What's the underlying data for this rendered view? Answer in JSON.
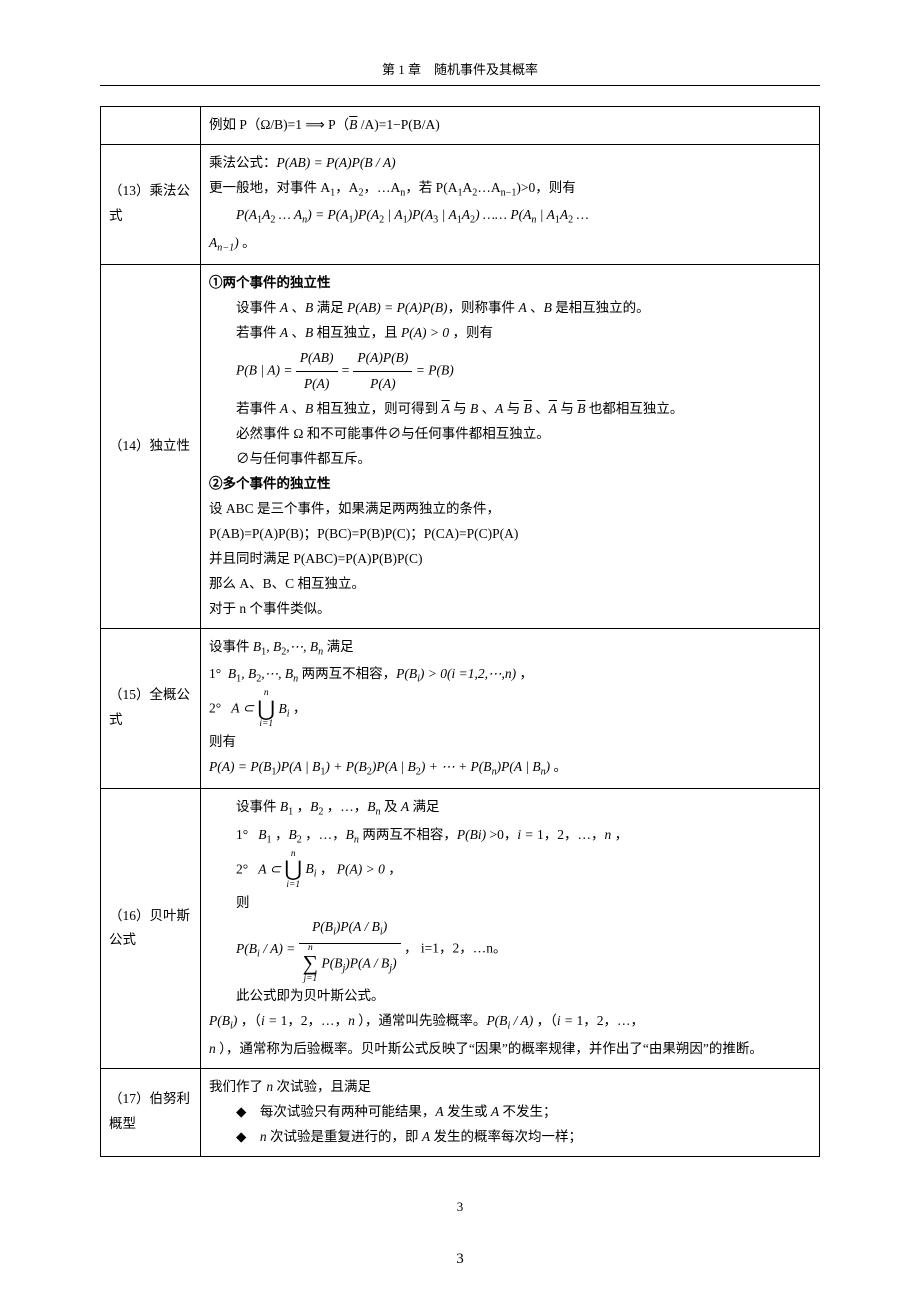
{
  "header": "第 1 章　随机事件及其概率",
  "rows": {
    "r0": {
      "content": "例如 P（Ω/B)=1 ⟹ P（<span class='overline formula'>B</span> /A)=1−P(B/A)"
    },
    "r13": {
      "label": "（13）乘法公式",
      "line1": "乘法公式：<span class='formula'>P(AB) = P(A)P(B / A)</span>",
      "line2": "更一般地，对事件 A<span class='sub'>1</span>，A<span class='sub'>2</span>，…A<span class='sub'>n</span>，若 P(A<span class='sub'>1</span>A<span class='sub'>2</span>…A<span class='sub'>n−1</span>)>0，则有",
      "line3": "<span class='formula'>P(A<span class='sub upright'>1</span>A<span class='sub upright'>2</span> … A<span class='sub'>n</span>) = P(A<span class='sub upright'>1</span>)P(A<span class='sub upright'>2</span> | A<span class='sub upright'>1</span>)P(A<span class='sub upright'>3</span> | A<span class='sub upright'>1</span>A<span class='sub upright'>2</span>) …… P(A<span class='sub'>n</span> | A<span class='sub upright'>1</span>A<span class='sub upright'>2</span> …</span>",
      "line4": "<span class='formula'>A<span class='sub'>n−1</span>)</span> 。"
    },
    "r14": {
      "label": "（14）独立性",
      "h1": "①两个事件的独立性",
      "l1": "设事件 <span class='formula'>A</span> 、<span class='formula'>B</span> 满足 <span class='formula'>P(AB) = P(A)P(B)</span>，则称事件 <span class='formula'>A</span> 、<span class='formula'>B</span> 是相互独立的。",
      "l2": "若事件 <span class='formula'>A</span> 、<span class='formula'>B</span> 相互独立，且 <span class='formula'>P(A) &gt; 0</span> ，则有",
      "l3": "<span class='formula'>P(B | A) = </span><span class='frac'><span class='num'>P(AB)</span><span class='den'>P(A)</span></span><span class='formula'> = </span><span class='frac'><span class='num'>P(A)P(B)</span><span class='den'>P(A)</span></span><span class='formula'> = P(B)</span>",
      "l4": "若事件 <span class='formula'>A</span> 、<span class='formula'>B</span> 相互独立，则可得到 <span class='formula overline'>A</span> 与 <span class='formula'>B</span> 、<span class='formula'>A</span> 与 <span class='formula overline'>B</span> 、<span class='formula overline'>A</span> 与 <span class='formula overline'>B</span> 也都相互独立。",
      "l5": "必然事件 Ω 和不可能事件∅与任何事件都相互独立。",
      "l6": "∅与任何事件都互斥。",
      "h2": "②多个事件的独立性",
      "l7": "设 ABC 是三个事件，如果满足两两独立的条件，",
      "l8": "P(AB)=P(A)P(B)；P(BC)=P(B)P(C)；P(CA)=P(C)P(A)",
      "l9": "并且同时满足 P(ABC)=P(A)P(B)P(C)",
      "l10": "那么 A、B、C 相互独立。",
      "l11": "对于 n 个事件类似。"
    },
    "r15": {
      "label": "（15）全概公式",
      "l1": "设事件 <span class='formula'>B<span class='sub upright'>1</span>, B<span class='sub upright'>2</span>,⋯, B<span class='sub'>n</span></span> 满足",
      "l2": "1° &nbsp;<span class='formula'>B<span class='sub upright'>1</span>, B<span class='sub upright'>2</span>,⋯, B<span class='sub'>n</span></span> 两两互不相容，<span class='formula'>P(B<span class='sub'>i</span>) &gt; 0(i =1,2,⋯,n)</span> ，",
      "l3": "2° &nbsp;&nbsp;<span class='formula'>A ⊂ </span><span class='bigop'><span class='top'>n</span><span class='mid'>⋃</span><span class='bot'>i=1</span></span><span class='formula'> B<span class='sub'>i</span></span> ，",
      "l4": "则有",
      "l5": "<span class='formula'>P(A) = P(B<span class='sub upright'>1</span>)P(A | B<span class='sub upright'>1</span>) + P(B<span class='sub upright'>2</span>)P(A | B<span class='sub upright'>2</span>) + ⋯ + P(B<span class='sub'>n</span>)P(A | B<span class='sub'>n</span>)</span> 。"
    },
    "r16": {
      "label": "（16）贝叶斯公式",
      "l1": "设事件 <span class='formula'>B<span class='sub upright'>1</span></span> ，<span class='formula'>B<span class='sub upright'>2</span></span> ，…，<span class='formula'>B<span class='sub'>n</span></span> 及 <span class='formula'>A</span> 满足",
      "l2": "1° &nbsp;&nbsp;<span class='formula'>B<span class='sub upright'>1</span></span> ，<span class='formula'>B<span class='sub upright'>2</span></span> ，…，<span class='formula'>B<span class='sub'>n</span></span> 两两互不相容，<span class='formula'>P(Bi)</span> &gt;0，<span class='formula'>i =</span> 1，2，…，<span class='formula'>n</span> ，",
      "l3": "2° &nbsp;&nbsp;<span class='formula'>A ⊂ </span><span class='bigop'><span class='top'>n</span><span class='mid'>⋃</span><span class='bot'>i=1</span></span><span class='formula'> B<span class='sub'>i</span></span> ，&nbsp;<span class='formula'>P(A) &gt; 0</span> ，",
      "l4": "则",
      "l5": "<span class='formula'>P(B<span class='sub'>i</span> / A) = </span><span class='frac'><span class='num'>P(B<span class='sub'>i</span>)P(A / B<span class='sub'>i</span>)</span><span class='den'><span class='bigop'><span class='top'>n</span><span class='mid'>∑</span><span class='bot'>j=1</span></span> P(B<span class='sub'>j</span>)P(A / B<span class='sub'>j</span>)</span></span> ，&nbsp;i=1，2，…n。",
      "l6": "此公式即为贝叶斯公式。",
      "l7": "<span class='formula'>P(B<span class='sub'>i</span>)</span> ，（<span class='formula'>i =</span> 1，2，…，<span class='formula'>n</span> ），通常叫先验概率。<span class='formula'>P(B<span class='sub'>i</span> / A)</span> ，（<span class='formula'>i =</span> 1，2，…，",
      "l8": "<span class='formula'>n</span> ），通常称为后验概率。贝叶斯公式反映了“因果”的概率规律，并作出了“由果朔因”的推断。"
    },
    "r17": {
      "label": "（17）伯努利概型",
      "l1": "我们作了 <span class='formula'>n</span> 次试验，且满足",
      "l2": "<span class='diamond'>◆</span>　每次试验只有两种可能结果，<span class='formula'>A</span> 发生或 <span class='formula'>A</span> 不发生；",
      "l3": "<span class='diamond'>◆</span>　<span class='formula'>n</span> 次试验是重复进行的，即 <span class='formula'>A</span> 发生的概率每次均一样；"
    }
  },
  "pagenum1": "3",
  "pagenum2": "3"
}
